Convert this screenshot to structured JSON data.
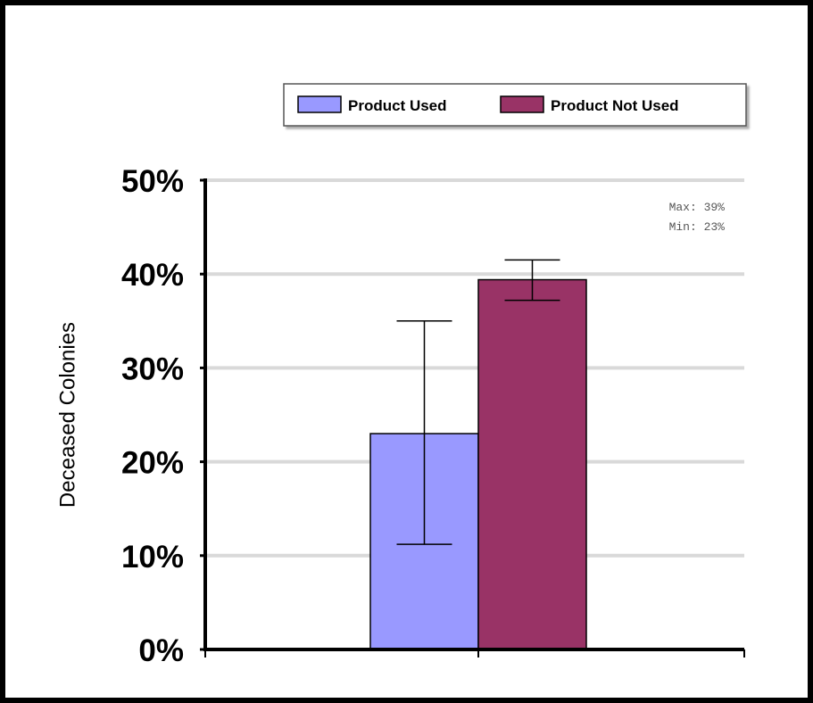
{
  "chart_data": {
    "type": "bar",
    "categories": [
      ""
    ],
    "series": [
      {
        "name": "Product Used",
        "values": [
          23
        ],
        "error_high": [
          35
        ],
        "error_low": [
          11.2
        ],
        "color": "#9999ff"
      },
      {
        "name": "Product Not Used",
        "values": [
          39.4
        ],
        "error_high": [
          41.5
        ],
        "error_low": [
          37.2
        ],
        "color": "#993366"
      }
    ],
    "ylabel": "Deceased Colonies",
    "xlabel": "",
    "ylim": [
      0,
      50
    ],
    "yticks": [
      "0%",
      "10%",
      "20%",
      "30%",
      "40%",
      "50%"
    ],
    "ytick_values": [
      0,
      10,
      20,
      30,
      40,
      50
    ],
    "grid": true,
    "grid_color": "#d9d9d9",
    "legend_placement": "top",
    "annotations": {
      "max": "Max: 39%",
      "min": "Min: 23%"
    }
  }
}
